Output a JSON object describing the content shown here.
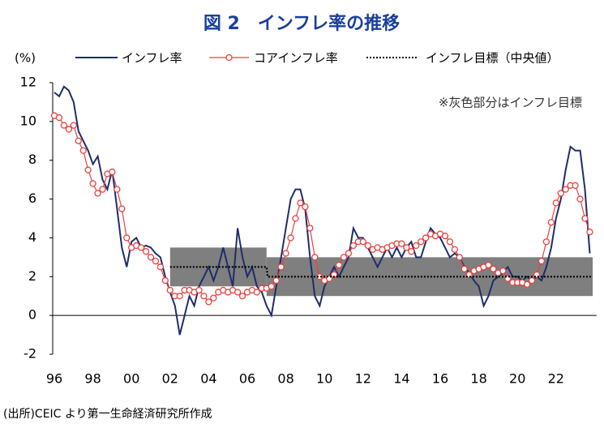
{
  "chart_data": {
    "type": "line",
    "title": "図 2　インフレ率の推移",
    "y_unit": "(%)",
    "annotation": "※灰色部分はインフレ目標",
    "source": "(出所)CEIC より第一生命経済研究所作成",
    "x": [
      1996,
      1996.25,
      1996.5,
      1996.75,
      1997,
      1997.25,
      1997.5,
      1997.75,
      1998,
      1998.25,
      1998.5,
      1998.75,
      1999,
      1999.25,
      1999.5,
      1999.75,
      2000,
      2000.25,
      2000.5,
      2000.75,
      2001,
      2001.25,
      2001.5,
      2001.75,
      2002,
      2002.25,
      2002.5,
      2002.75,
      2003,
      2003.25,
      2003.5,
      2003.75,
      2004,
      2004.25,
      2004.5,
      2004.75,
      2005,
      2005.25,
      2005.5,
      2005.75,
      2006,
      2006.25,
      2006.5,
      2006.75,
      2007,
      2007.25,
      2007.5,
      2007.75,
      2008,
      2008.25,
      2008.5,
      2008.75,
      2009,
      2009.25,
      2009.5,
      2009.75,
      2010,
      2010.25,
      2010.5,
      2010.75,
      2011,
      2011.25,
      2011.5,
      2011.75,
      2012,
      2012.25,
      2012.5,
      2012.75,
      2013,
      2013.25,
      2013.5,
      2013.75,
      2014,
      2014.25,
      2014.5,
      2014.75,
      2015,
      2015.25,
      2015.5,
      2015.75,
      2016,
      2016.25,
      2016.5,
      2016.75,
      2017,
      2017.25,
      2017.5,
      2017.75,
      2018,
      2018.25,
      2018.5,
      2018.75,
      2019,
      2019.25,
      2019.5,
      2019.75,
      2020,
      2020.25,
      2020.5,
      2020.75,
      2021,
      2021.25,
      2021.5,
      2021.75,
      2022,
      2022.25,
      2022.5,
      2022.75,
      2023,
      2023.25,
      2023.5,
      2023.75
    ],
    "series": [
      {
        "name": "インフレ率",
        "color": "#1f2d6b",
        "style": "solid",
        "values": [
          11.5,
          11.3,
          11.8,
          11.6,
          11.0,
          9.5,
          9.0,
          8.5,
          7.8,
          8.2,
          7.0,
          6.5,
          7.5,
          5.5,
          3.5,
          2.5,
          3.8,
          4.0,
          3.5,
          3.6,
          3.5,
          3.2,
          3.0,
          2.0,
          1.2,
          0.5,
          -1.0,
          0.0,
          1.0,
          0.5,
          1.5,
          2.0,
          2.5,
          1.8,
          2.5,
          3.5,
          2.5,
          1.5,
          4.5,
          3.0,
          2.0,
          2.5,
          1.5,
          1.2,
          0.5,
          0.0,
          1.5,
          3.0,
          4.5,
          6.0,
          6.5,
          6.5,
          5.5,
          3.0,
          1.0,
          0.5,
          1.5,
          2.0,
          2.5,
          2.0,
          2.5,
          3.0,
          4.5,
          4.0,
          4.0,
          3.5,
          3.0,
          2.5,
          3.0,
          3.5,
          3.0,
          3.5,
          3.0,
          3.5,
          3.8,
          3.0,
          3.0,
          3.8,
          4.5,
          4.2,
          4.0,
          3.5,
          3.0,
          3.2,
          3.0,
          2.5,
          2.2,
          1.8,
          1.5,
          0.5,
          1.0,
          1.8,
          2.0,
          2.2,
          2.5,
          2.0,
          2.0,
          1.8,
          2.0,
          1.8,
          2.0,
          1.8,
          2.5,
          3.5,
          5.0,
          6.0,
          7.5,
          8.7,
          8.5,
          8.5,
          6.5,
          3.2
        ]
      },
      {
        "name": "コアインフレ率",
        "color": "#e8423f",
        "style": "marker",
        "values": [
          10.3,
          10.2,
          9.8,
          9.6,
          9.8,
          9.0,
          8.5,
          7.5,
          6.8,
          6.3,
          6.5,
          7.3,
          7.4,
          6.5,
          5.5,
          4.0,
          3.5,
          3.6,
          3.5,
          3.3,
          3.0,
          2.8,
          2.5,
          1.8,
          1.3,
          1.0,
          1.0,
          1.3,
          1.3,
          1.2,
          1.3,
          1.0,
          0.7,
          0.9,
          1.2,
          1.3,
          1.2,
          1.3,
          1.2,
          1.0,
          1.2,
          1.3,
          1.2,
          1.4,
          1.4,
          1.5,
          1.8,
          2.5,
          3.2,
          4.0,
          5.0,
          5.8,
          5.6,
          4.5,
          3.0,
          2.0,
          1.8,
          1.9,
          2.1,
          2.6,
          3.0,
          3.2,
          3.6,
          3.8,
          3.8,
          3.6,
          3.4,
          3.5,
          3.4,
          3.5,
          3.6,
          3.7,
          3.7,
          3.5,
          3.3,
          3.6,
          3.8,
          4.0,
          4.2,
          4.1,
          4.2,
          4.1,
          3.8,
          3.4,
          3.0,
          2.4,
          2.1,
          2.3,
          2.4,
          2.5,
          2.6,
          2.4,
          2.2,
          2.3,
          1.9,
          1.7,
          1.7,
          1.7,
          1.6,
          1.8,
          2.1,
          2.8,
          3.8,
          4.8,
          5.8,
          6.3,
          6.5,
          6.7,
          6.7,
          6.0,
          5.0,
          4.3
        ]
      },
      {
        "name": "インフレ目標（中央値）",
        "color": "#000000",
        "style": "dotted",
        "x": [
          2002,
          2007,
          2007.05,
          2023.9
        ],
        "values": [
          2.5,
          2.5,
          2,
          2
        ]
      }
    ],
    "target_range": [
      {
        "x": [
          2002,
          2007
        ],
        "low": 1.5,
        "high": 3.5,
        "color": "#7f7f7f"
      },
      {
        "x": [
          2007,
          2023.9
        ],
        "low": 1,
        "high": 3,
        "color": "#7f7f7f"
      }
    ],
    "xlim": [
      1996,
      2024.1
    ],
    "ylim": [
      -2,
      12
    ],
    "yticks": [
      -2,
      0,
      2,
      4,
      6,
      8,
      10,
      12
    ],
    "xticks": [
      {
        "value": 1996,
        "label": "96"
      },
      {
        "value": 1998,
        "label": "98"
      },
      {
        "value": 2000,
        "label": "00"
      },
      {
        "value": 2002,
        "label": "02"
      },
      {
        "value": 2004,
        "label": "04"
      },
      {
        "value": 2006,
        "label": "06"
      },
      {
        "value": 2008,
        "label": "08"
      },
      {
        "value": 2010,
        "label": "10"
      },
      {
        "value": 2012,
        "label": "12"
      },
      {
        "value": 2014,
        "label": "14"
      },
      {
        "value": 2016,
        "label": "16"
      },
      {
        "value": 2018,
        "label": "18"
      },
      {
        "value": 2020,
        "label": "20"
      },
      {
        "value": 2022,
        "label": "22"
      }
    ]
  }
}
